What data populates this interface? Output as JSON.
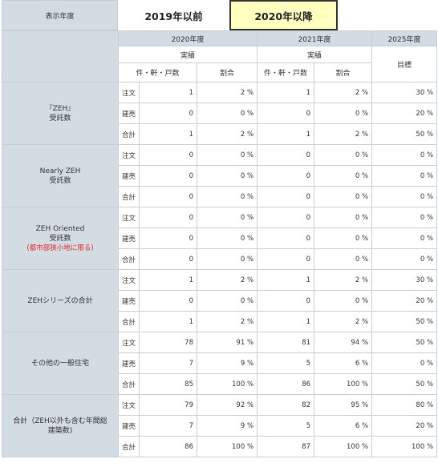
{
  "year_selector": {
    "label": "表示年度",
    "tabs": [
      {
        "label": "2019年以前",
        "active": false
      },
      {
        "label": "2020年以降",
        "active": true
      }
    ]
  },
  "headers": {
    "year_2020": "2020年度",
    "year_2021": "2021年度",
    "year_2025": "2025年度",
    "actual": "実績",
    "target": "目標",
    "count": "件・軒・戸数",
    "ratio": "割合"
  },
  "categories": [
    {
      "name_lines": [
        "『ZEH』",
        "受託数"
      ],
      "note": "",
      "rows": [
        {
          "type": "注文",
          "c20": "1",
          "r20": "2 %",
          "c21": "1",
          "r21": "2 %",
          "t25": "30 %"
        },
        {
          "type": "建売",
          "c20": "0",
          "r20": "0 %",
          "c21": "0",
          "r21": "0 %",
          "t25": "20 %"
        },
        {
          "type": "合計",
          "c20": "1",
          "r20": "2 %",
          "c21": "1",
          "r21": "2 %",
          "t25": "50 %"
        }
      ]
    },
    {
      "name_lines": [
        "Nearly ZEH",
        "受託数"
      ],
      "note": "",
      "rows": [
        {
          "type": "注文",
          "c20": "0",
          "r20": "0 %",
          "c21": "0",
          "r21": "0 %",
          "t25": "0 %"
        },
        {
          "type": "建売",
          "c20": "0",
          "r20": "0 %",
          "c21": "0",
          "r21": "0 %",
          "t25": "0 %"
        },
        {
          "type": "合計",
          "c20": "0",
          "r20": "0 %",
          "c21": "0",
          "r21": "0 %",
          "t25": "0 %"
        }
      ]
    },
    {
      "name_lines": [
        "ZEH Oriented",
        "受託数"
      ],
      "note": "(都市部狭小地に限る)",
      "rows": [
        {
          "type": "注文",
          "c20": "0",
          "r20": "0 %",
          "c21": "0",
          "r21": "0 %",
          "t25": "0 %"
        },
        {
          "type": "建売",
          "c20": "0",
          "r20": "0 %",
          "c21": "0",
          "r21": "0 %",
          "t25": "0 %"
        },
        {
          "type": "合計",
          "c20": "0",
          "r20": "0 %",
          "c21": "0",
          "r21": "0 %",
          "t25": "0 %"
        }
      ]
    },
    {
      "name_lines": [
        "ZEHシリーズの合計"
      ],
      "note": "",
      "rows": [
        {
          "type": "注文",
          "c20": "1",
          "r20": "2 %",
          "c21": "1",
          "r21": "2 %",
          "t25": "30 %"
        },
        {
          "type": "建売",
          "c20": "0",
          "r20": "0 %",
          "c21": "0",
          "r21": "0 %",
          "t25": "20 %"
        },
        {
          "type": "合計",
          "c20": "1",
          "r20": "2 %",
          "c21": "1",
          "r21": "2 %",
          "t25": "50 %"
        }
      ]
    },
    {
      "name_lines": [
        "その他の一般住宅"
      ],
      "note": "",
      "rows": [
        {
          "type": "注文",
          "c20": "78",
          "r20": "91 %",
          "c21": "81",
          "r21": "94 %",
          "t25": "50 %"
        },
        {
          "type": "建売",
          "c20": "7",
          "r20": "9 %",
          "c21": "5",
          "r21": "6 %",
          "t25": "0 %"
        },
        {
          "type": "合計",
          "c20": "85",
          "r20": "100 %",
          "c21": "86",
          "r21": "100 %",
          "t25": "50 %"
        }
      ]
    },
    {
      "name_lines": [
        "合計（ZEH以外も含む年間総",
        "建築数)"
      ],
      "note": "",
      "rows": [
        {
          "type": "注文",
          "c20": "79",
          "r20": "92 %",
          "c21": "82",
          "r21": "95 %",
          "t25": "80 %"
        },
        {
          "type": "建売",
          "c20": "7",
          "r20": "9 %",
          "c21": "5",
          "r21": "6 %",
          "t25": "20 %"
        },
        {
          "type": "合計",
          "c20": "86",
          "r20": "100 %",
          "c21": "87",
          "r21": "100 %",
          "t25": "100 %"
        }
      ]
    }
  ]
}
